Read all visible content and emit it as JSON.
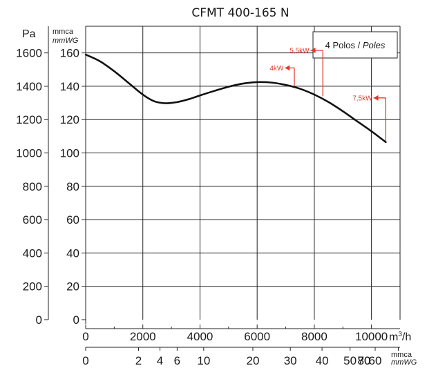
{
  "chart_data": {
    "type": "line",
    "title": "CFMT 400-165 N",
    "x_unit": "m³/h",
    "x_unit_base": "m",
    "x_unit_sup": "3",
    "x_unit_tail": "/h",
    "y_unit_left": "Pa",
    "y_unit_mmca": "mmca",
    "y_unit_mmwg": "mmWG",
    "x_ticks": [
      0,
      2000,
      4000,
      6000,
      8000,
      10000
    ],
    "y_ticks_pa": [
      0,
      200,
      400,
      600,
      800,
      1000,
      1200,
      1400,
      1600
    ],
    "y_ticks_mmca": [
      0,
      20,
      40,
      60,
      80,
      100,
      120,
      140,
      160
    ],
    "xlim": [
      0,
      11000
    ],
    "ylim_pa": [
      0,
      1760
    ],
    "grid": true,
    "legend": {
      "position": "top-right",
      "text_plain": "4 Polos / ",
      "text_italic": "Poles"
    },
    "series": [
      {
        "x": [
          0,
          500,
          1000,
          1500,
          2000,
          2400,
          2800,
          3200,
          3600,
          4000,
          4500,
          5000,
          5500,
          6000,
          6500,
          7000,
          7500,
          8000,
          8500,
          9000,
          9500,
          10000,
          10500
        ],
        "y": [
          1590,
          1550,
          1490,
          1420,
          1350,
          1310,
          1298,
          1305,
          1322,
          1345,
          1372,
          1397,
          1416,
          1425,
          1422,
          1408,
          1385,
          1350,
          1305,
          1250,
          1190,
          1130,
          1065
        ]
      }
    ],
    "annotations": [
      {
        "label": "4kW",
        "x": 7300,
        "y": 1400,
        "label_x": 6100,
        "label_y": 1510,
        "color": "#e0392b"
      },
      {
        "label": "5,5kW",
        "x": 8300,
        "y": 1340,
        "label_x": 7000,
        "label_y": 1615,
        "color": "#e0392b"
      },
      {
        "label": "7,5kW",
        "x": 10500,
        "y": 1070,
        "label_x": 9200,
        "label_y": 1330,
        "color": "#e0392b"
      }
    ],
    "secondary_x_axis": {
      "unit_line1": "mmca",
      "unit_line2": "mmWG",
      "ticks": [
        {
          "label": "0",
          "x": 0
        },
        {
          "label": "2",
          "x": 1850
        },
        {
          "label": "4",
          "x": 2600
        },
        {
          "label": "6",
          "x": 3200
        },
        {
          "label": "10",
          "x": 4130
        },
        {
          "label": "20",
          "x": 5850
        },
        {
          "label": "30",
          "x": 7160
        },
        {
          "label": "40",
          "x": 8270
        },
        {
          "label": "50",
          "x": 9250
        },
        {
          "label": "60",
          "x": 10130
        },
        {
          "label": "70",
          "x": 10940
        },
        {
          "label": "80",
          "x": 11700
        }
      ]
    }
  }
}
